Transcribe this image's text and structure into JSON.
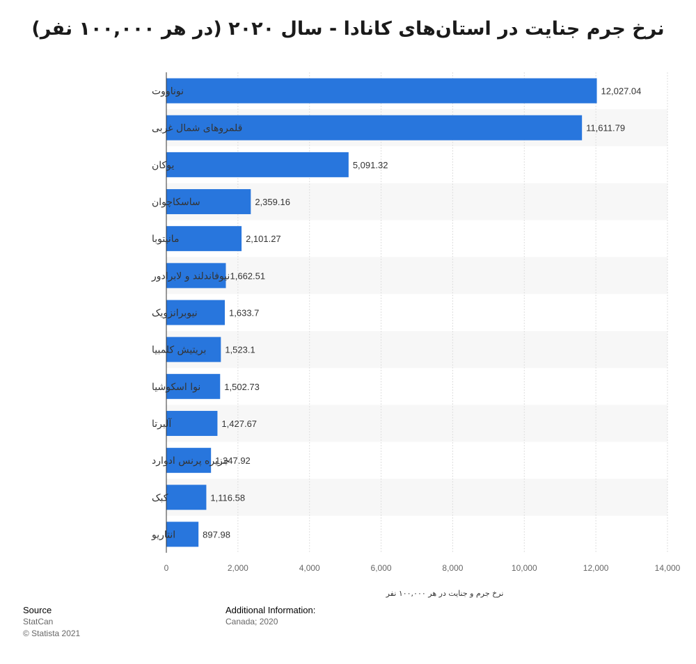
{
  "chart_data": {
    "type": "bar",
    "orientation": "horizontal",
    "title": "نرخ جرم جنایت در استان‌های کانادا - سال ۲۰۲۰ (در هر ۱۰۰,۰۰۰ نفر)",
    "xlabel": "نرخ جرم و جنایت در هر ۱۰۰,۰۰۰ نفر",
    "ylabel": "",
    "xlim": [
      0,
      14000
    ],
    "x_ticks": [
      0,
      2000,
      4000,
      6000,
      8000,
      10000,
      12000,
      14000
    ],
    "x_tick_labels": [
      "0",
      "2,000",
      "4,000",
      "6,000",
      "8,000",
      "10,000",
      "12,000",
      "14,000"
    ],
    "grid": "vertical",
    "bar_color": "#2876dd",
    "categories": [
      "نوناووت",
      "قلمروهای شمال غربی",
      "یوکان",
      "ساسکاچوان",
      "مانیتوبا",
      "نیوفاندلند و لابرادور",
      "نیوبرانزویک",
      "بریتیش کلمبیا",
      "نوا اسکوشیا",
      "آلبرتا",
      "جزیره پرنس ادوارد",
      "کبک",
      "انتاریو"
    ],
    "values": [
      12027.04,
      11611.79,
      5091.32,
      2359.16,
      2101.27,
      1662.51,
      1633.7,
      1523.1,
      1502.73,
      1427.67,
      1247.92,
      1116.58,
      897.98
    ],
    "value_labels": [
      "12,027.04",
      "11,611.79",
      "5,091.32",
      "2,359.16",
      "2,101.27",
      "1,662.51",
      "1,633.7",
      "1,523.1",
      "1,502.73",
      "1,427.67",
      "1,247.92",
      "1,116.58",
      "897.98"
    ]
  },
  "footer": {
    "source_heading": "Source",
    "source_name": "StatCan",
    "copyright": "© Statista 2021",
    "additional_heading": "Additional Information:",
    "additional_text": "Canada; 2020"
  }
}
